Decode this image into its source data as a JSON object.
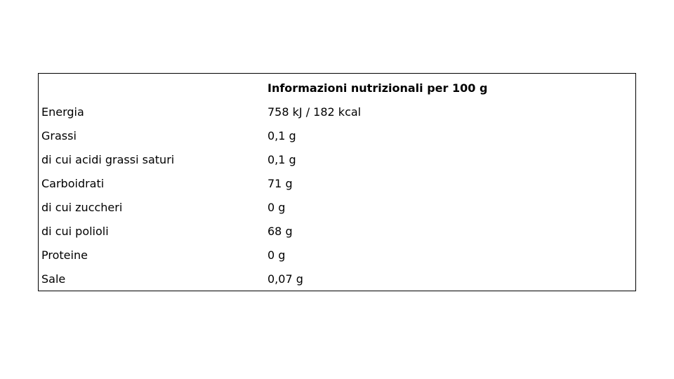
{
  "table": {
    "header": [
      "",
      "Informazioni nutrizionali per 100 g"
    ],
    "rows": [
      [
        "Energia",
        "758 kJ / 182 kcal"
      ],
      [
        "Grassi",
        "0,1 g"
      ],
      [
        "di cui acidi grassi saturi",
        "0,1 g"
      ],
      [
        "Carboidrati",
        "71 g"
      ],
      [
        "di cui zuccheri",
        "0 g"
      ],
      [
        "di cui polioli",
        "68 g"
      ],
      [
        "Proteine",
        "0 g"
      ],
      [
        "Sale",
        "0,07 g"
      ]
    ]
  }
}
